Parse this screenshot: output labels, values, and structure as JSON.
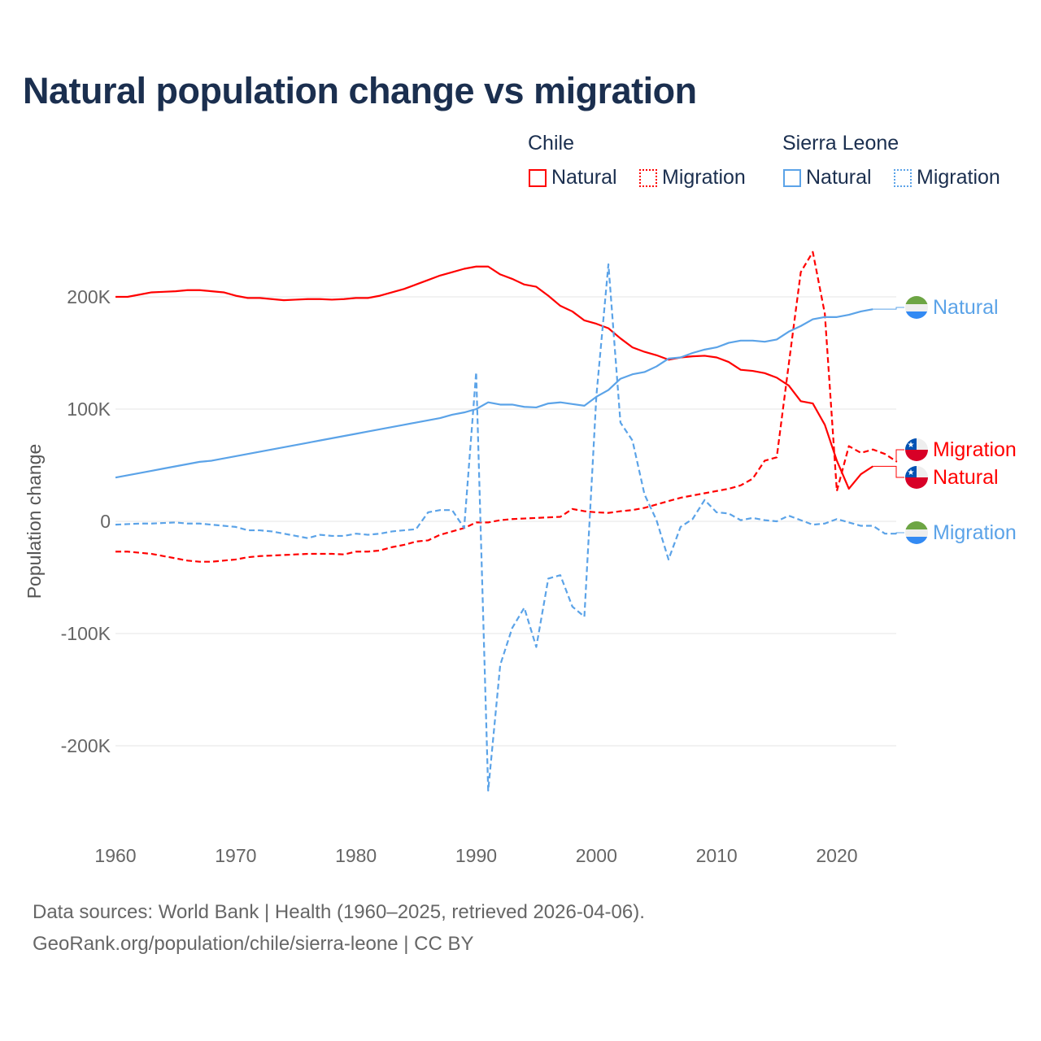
{
  "title": "Natural population change vs migration",
  "legend": {
    "groups": [
      {
        "name": "Chile",
        "color": "#ff0000",
        "items": [
          "Natural",
          "Migration"
        ]
      },
      {
        "name": "Sierra Leone",
        "color": "#5ba3e8",
        "items": [
          "Natural",
          "Migration"
        ]
      }
    ]
  },
  "footer": {
    "line1": "Data sources: World Bank | Health (1960–2025, retrieved 2026-04-06).",
    "line2": "GeoRank.org/population/chile/sierra-leone | CC BY"
  },
  "chart_data": {
    "type": "line",
    "title": "Natural population change vs migration",
    "xlabel": "",
    "ylabel": "Population change",
    "xlim": [
      1960,
      2025
    ],
    "ylim": [
      -250000,
      250000
    ],
    "x_ticks": [
      1960,
      1970,
      1980,
      1990,
      2000,
      2010,
      2020
    ],
    "x_tick_labels": [
      "1960",
      "1970",
      "1980",
      "1990",
      "2000",
      "2010",
      "2020"
    ],
    "y_ticks": [
      200000,
      100000,
      0,
      -100000,
      -200000
    ],
    "y_tick_labels": [
      "200K",
      "100K",
      "0",
      "-100K",
      "-200K"
    ],
    "grid": true,
    "series": [
      {
        "name": "Chile Natural",
        "end_label": "Natural",
        "country": "Chile",
        "color": "#ff0000",
        "dash": false,
        "start": 1960,
        "values": [
          200,
          200,
          202,
          204,
          204.5,
          205,
          206,
          206,
          205,
          204,
          201,
          199,
          199,
          198,
          197,
          197.5,
          198,
          198,
          197.5,
          198,
          199,
          199,
          201,
          204,
          207,
          211,
          215,
          219,
          222,
          225,
          227,
          227,
          220,
          216,
          211,
          209,
          201,
          192,
          187,
          179,
          176,
          172,
          163,
          155,
          151,
          148,
          144,
          146,
          147,
          147.5,
          146,
          142,
          135,
          134,
          132,
          128,
          121,
          107,
          105,
          86,
          54,
          29,
          42,
          49
        ]
      },
      {
        "name": "Chile Migration",
        "end_label": "Migration",
        "country": "Chile",
        "color": "#ff0000",
        "dash": true,
        "start": 1960,
        "values": [
          -27,
          -27,
          -28,
          -29,
          -31,
          -33,
          -35,
          -36,
          -36,
          -35,
          -34,
          -32,
          -31,
          -30.5,
          -30,
          -29.5,
          -29,
          -29,
          -29,
          -29.5,
          -27,
          -27,
          -26,
          -23,
          -21,
          -18,
          -17,
          -12,
          -9,
          -6,
          -1,
          -1,
          1,
          2,
          2.5,
          3,
          3.5,
          4,
          11,
          9,
          8,
          7.5,
          9,
          10,
          12,
          15,
          18,
          21,
          23,
          25,
          27,
          29,
          32,
          38,
          54,
          57,
          140,
          222,
          240,
          185,
          27,
          67,
          61,
          64,
          60,
          53
        ]
      },
      {
        "name": "Sierra Leone Natural",
        "end_label": "Natural",
        "country": "Sierra Leone",
        "color": "#5ba3e8",
        "dash": false,
        "start": 1960,
        "values": [
          39,
          41,
          43,
          45,
          47,
          49,
          51,
          53,
          54,
          56,
          58,
          60,
          62,
          64,
          66,
          68,
          70,
          72,
          74,
          76,
          78,
          80,
          82,
          84,
          86,
          88,
          90,
          92,
          95,
          97,
          100,
          106,
          104,
          104,
          102,
          101.5,
          105,
          106,
          104.5,
          103,
          111,
          117,
          127,
          131,
          133,
          138,
          145,
          146,
          150,
          153,
          155,
          159,
          161,
          161,
          160,
          162,
          169,
          174,
          180,
          182,
          182,
          184,
          187,
          189
        ]
      },
      {
        "name": "Sierra Leone Migration",
        "end_label": "Migration",
        "country": "Sierra Leone",
        "color": "#5ba3e8",
        "dash": true,
        "start": 1960,
        "values": [
          -3,
          -2.5,
          -2,
          -2,
          -1.5,
          -1,
          -2,
          -2,
          -3,
          -4,
          -5,
          -8,
          -8,
          -9,
          -11,
          -13,
          -15,
          -12,
          -13,
          -13,
          -11,
          -12,
          -11,
          -9,
          -8,
          -7,
          8,
          10,
          10,
          -6,
          133,
          -240,
          -128,
          -95,
          -77,
          -112,
          -51,
          -48,
          -76,
          -85,
          112,
          229,
          88,
          72,
          24,
          1,
          -34,
          -5,
          2,
          19,
          8,
          7,
          1,
          3,
          1,
          0,
          5,
          1,
          -3,
          -2,
          2,
          -1,
          -4,
          -4,
          -11,
          -11
        ]
      }
    ],
    "value_unit": "thousands"
  }
}
